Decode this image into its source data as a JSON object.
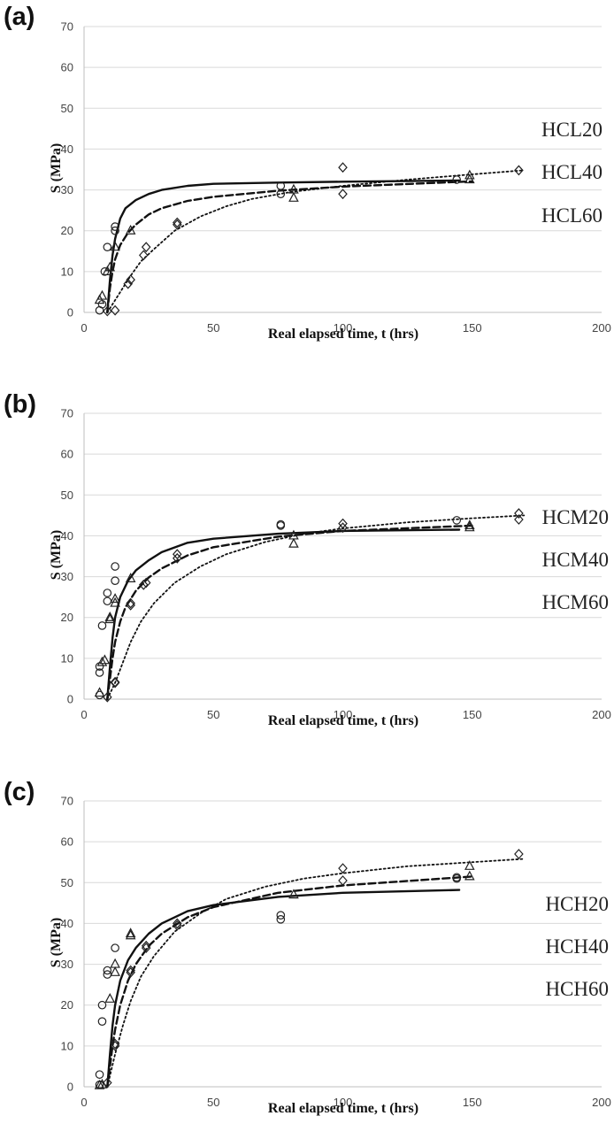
{
  "chart_data": [
    {
      "type": "scatter",
      "panel_label": "(a)",
      "xlabel": "Real elapsed time, t (hrs)",
      "ylabel": "S (MPa)",
      "xlim": [
        0,
        200
      ],
      "ylim": [
        0,
        70
      ],
      "xticks": [
        0,
        50,
        100,
        150,
        200
      ],
      "yticks": [
        0,
        10,
        20,
        30,
        40,
        50,
        60,
        70
      ],
      "grid": "horizontal",
      "legend_labels": [
        "HCL20",
        "HCL40",
        "HCL60"
      ],
      "series": [
        {
          "marker": "circle",
          "line_style": "solid",
          "points": [
            [
              6,
              0.5
            ],
            [
              7,
              2
            ],
            [
              8,
              10
            ],
            [
              9,
              16
            ],
            [
              12,
              20
            ],
            [
              12,
              21
            ],
            [
              76,
              29
            ],
            [
              76,
              31
            ],
            [
              144,
              32.5
            ]
          ],
          "fit": [
            [
              9,
              0
            ],
            [
              10,
              8
            ],
            [
              11,
              14
            ],
            [
              12,
              18
            ],
            [
              14,
              23
            ],
            [
              16,
              25.5
            ],
            [
              20,
              27.5
            ],
            [
              25,
              29
            ],
            [
              30,
              30
            ],
            [
              40,
              31
            ],
            [
              50,
              31.5
            ],
            [
              75,
              31.8
            ],
            [
              100,
              32
            ],
            [
              145,
              32.3
            ]
          ]
        },
        {
          "marker": "triangle",
          "line_style": "dashed",
          "points": [
            [
              6,
              3
            ],
            [
              7,
              4
            ],
            [
              9,
              10
            ],
            [
              10,
              11
            ],
            [
              12,
              16
            ],
            [
              18,
              20
            ],
            [
              81,
              28
            ],
            [
              81,
              30
            ],
            [
              149,
              32.5
            ],
            [
              149,
              33.5
            ]
          ],
          "fit": [
            [
              9,
              0
            ],
            [
              10,
              6
            ],
            [
              11,
              10
            ],
            [
              12,
              13
            ],
            [
              14,
              16.5
            ],
            [
              17,
              19.5
            ],
            [
              20,
              21.5
            ],
            [
              25,
              24
            ],
            [
              30,
              25.5
            ],
            [
              40,
              27.3
            ],
            [
              50,
              28.3
            ],
            [
              75,
              29.8
            ],
            [
              100,
              30.8
            ],
            [
              150,
              32.1
            ]
          ]
        },
        {
          "marker": "diamond",
          "line_style": "dotted",
          "points": [
            [
              9,
              0.3
            ],
            [
              12,
              0.5
            ],
            [
              17,
              7
            ],
            [
              18,
              8
            ],
            [
              23,
              14
            ],
            [
              24,
              16
            ],
            [
              36,
              21.5
            ],
            [
              36,
              22
            ],
            [
              100,
              29
            ],
            [
              100,
              35.5
            ],
            [
              168,
              34.8
            ]
          ],
          "fit": [
            [
              9,
              0
            ],
            [
              12,
              3
            ],
            [
              15,
              6
            ],
            [
              18,
              9
            ],
            [
              22,
              12.5
            ],
            [
              27,
              15.5
            ],
            [
              35,
              20
            ],
            [
              45,
              23.5
            ],
            [
              55,
              26
            ],
            [
              65,
              27.8
            ],
            [
              80,
              29.5
            ],
            [
              100,
              31
            ],
            [
              125,
              32.5
            ],
            [
              150,
              33.8
            ],
            [
              170,
              34.8
            ]
          ]
        }
      ]
    },
    {
      "type": "scatter",
      "panel_label": "(b)",
      "xlabel": "Real elapsed time, t (hrs)",
      "ylabel": "S (MPa)",
      "xlim": [
        0,
        200
      ],
      "ylim": [
        0,
        70
      ],
      "xticks": [
        0,
        50,
        100,
        150,
        200
      ],
      "yticks": [
        0,
        10,
        20,
        30,
        40,
        50,
        60,
        70
      ],
      "grid": "horizontal",
      "legend_labels": [
        "HCM20",
        "HCM40",
        "HCM60"
      ],
      "series": [
        {
          "marker": "circle",
          "line_style": "solid",
          "points": [
            [
              6,
              1
            ],
            [
              6,
              6.5
            ],
            [
              6,
              8
            ],
            [
              7,
              18
            ],
            [
              9,
              24
            ],
            [
              9,
              26
            ],
            [
              12,
              29
            ],
            [
              12,
              32.5
            ],
            [
              76,
              42.5
            ],
            [
              76,
              42.8
            ],
            [
              144,
              43.8
            ]
          ],
          "fit": [
            [
              9,
              0
            ],
            [
              10,
              8
            ],
            [
              11,
              15
            ],
            [
              12,
              20
            ],
            [
              14,
              25
            ],
            [
              17,
              29
            ],
            [
              20,
              31.5
            ],
            [
              25,
              34
            ],
            [
              30,
              36
            ],
            [
              40,
              38.3
            ],
            [
              50,
              39.3
            ],
            [
              75,
              40.5
            ],
            [
              100,
              41.2
            ],
            [
              145,
              41.5
            ]
          ]
        },
        {
          "marker": "triangle",
          "line_style": "dashed",
          "points": [
            [
              6,
              1.5
            ],
            [
              7,
              9
            ],
            [
              8,
              9.5
            ],
            [
              10,
              20
            ],
            [
              10,
              19.5
            ],
            [
              12,
              23.5
            ],
            [
              12,
              24.5
            ],
            [
              18,
              29.5
            ],
            [
              81,
              38
            ],
            [
              81,
              40
            ],
            [
              149,
              42
            ],
            [
              149,
              42.5
            ]
          ],
          "fit": [
            [
              9,
              0
            ],
            [
              10,
              5
            ],
            [
              11,
              10
            ],
            [
              12,
              14
            ],
            [
              14,
              19
            ],
            [
              16,
              22.5
            ],
            [
              20,
              26.5
            ],
            [
              25,
              29.8
            ],
            [
              30,
              32
            ],
            [
              40,
              35.2
            ],
            [
              50,
              37.2
            ],
            [
              75,
              39.8
            ],
            [
              100,
              41.2
            ],
            [
              150,
              42.5
            ]
          ]
        },
        {
          "marker": "diamond",
          "line_style": "dotted",
          "points": [
            [
              9,
              0.5
            ],
            [
              12,
              4
            ],
            [
              12,
              4.2
            ],
            [
              18,
              23
            ],
            [
              18,
              23.5
            ],
            [
              23,
              28
            ],
            [
              24,
              28.5
            ],
            [
              36,
              34.5
            ],
            [
              36,
              35.5
            ],
            [
              100,
              42
            ],
            [
              100,
              43
            ],
            [
              168,
              44
            ],
            [
              168,
              45.5
            ]
          ],
          "fit": [
            [
              9,
              0
            ],
            [
              12,
              4
            ],
            [
              15,
              9
            ],
            [
              18,
              14
            ],
            [
              22,
              19
            ],
            [
              27,
              23.5
            ],
            [
              35,
              28.5
            ],
            [
              45,
              32.5
            ],
            [
              55,
              35.5
            ],
            [
              70,
              38.5
            ],
            [
              85,
              40.5
            ],
            [
              100,
              41.8
            ],
            [
              125,
              43.3
            ],
            [
              150,
              44.3
            ],
            [
              170,
              45
            ]
          ]
        }
      ]
    },
    {
      "type": "scatter",
      "panel_label": "(c)",
      "xlabel": "Real elapsed time, t (hrs)",
      "ylabel": "S (MPa)",
      "xlim": [
        0,
        200
      ],
      "ylim": [
        0,
        70
      ],
      "xticks": [
        0,
        50,
        100,
        150,
        200
      ],
      "yticks": [
        0,
        10,
        20,
        30,
        40,
        50,
        60,
        70
      ],
      "grid": "horizontal",
      "legend_labels": [
        "HCH20",
        "HCH40",
        "HCH60"
      ],
      "series": [
        {
          "marker": "circle",
          "line_style": "solid",
          "points": [
            [
              6,
              0.5
            ],
            [
              6,
              3
            ],
            [
              7,
              16
            ],
            [
              7,
              20
            ],
            [
              9,
              27.5
            ],
            [
              9,
              28.5
            ],
            [
              12,
              34
            ],
            [
              76,
              41
            ],
            [
              76,
              42
            ],
            [
              144,
              51
            ],
            [
              144,
              51.3
            ]
          ],
          "fit": [
            [
              9,
              0
            ],
            [
              10,
              8
            ],
            [
              11,
              15
            ],
            [
              12,
              20
            ],
            [
              14,
              26
            ],
            [
              17,
              31
            ],
            [
              20,
              34
            ],
            [
              25,
              37.5
            ],
            [
              30,
              40
            ],
            [
              40,
              43
            ],
            [
              50,
              44.5
            ],
            [
              75,
              46.5
            ],
            [
              100,
              47.5
            ],
            [
              145,
              48.2
            ]
          ]
        },
        {
          "marker": "triangle",
          "line_style": "dashed",
          "points": [
            [
              6,
              0.3
            ],
            [
              7,
              0.5
            ],
            [
              10,
              21.5
            ],
            [
              12,
              28
            ],
            [
              12,
              30
            ],
            [
              18,
              37
            ],
            [
              18,
              37.5
            ],
            [
              81,
              47
            ],
            [
              149,
              51.5
            ],
            [
              149,
              54
            ]
          ],
          "fit": [
            [
              9,
              0
            ],
            [
              10,
              5
            ],
            [
              11,
              10
            ],
            [
              12,
              14
            ],
            [
              14,
              20
            ],
            [
              17,
              26
            ],
            [
              20,
              30
            ],
            [
              25,
              34.5
            ],
            [
              30,
              37.5
            ],
            [
              40,
              41.5
            ],
            [
              50,
              44
            ],
            [
              75,
              47.5
            ],
            [
              100,
              49.3
            ],
            [
              150,
              51.5
            ]
          ]
        },
        {
          "marker": "diamond",
          "line_style": "dotted",
          "points": [
            [
              9,
              1
            ],
            [
              12,
              10
            ],
            [
              12,
              10.5
            ],
            [
              18,
              28
            ],
            [
              18,
              28.5
            ],
            [
              24,
              34
            ],
            [
              24,
              34.5
            ],
            [
              36,
              39.5
            ],
            [
              36,
              40
            ],
            [
              100,
              50.5
            ],
            [
              100,
              53.5
            ],
            [
              168,
              57
            ]
          ],
          "fit": [
            [
              9,
              0
            ],
            [
              12,
              8
            ],
            [
              15,
              15
            ],
            [
              18,
              21
            ],
            [
              22,
              27
            ],
            [
              27,
              32
            ],
            [
              35,
              38
            ],
            [
              45,
              42.5
            ],
            [
              55,
              46
            ],
            [
              70,
              49
            ],
            [
              85,
              51
            ],
            [
              100,
              52.3
            ],
            [
              125,
              54
            ],
            [
              150,
              55
            ],
            [
              170,
              55.8
            ]
          ]
        }
      ]
    }
  ]
}
